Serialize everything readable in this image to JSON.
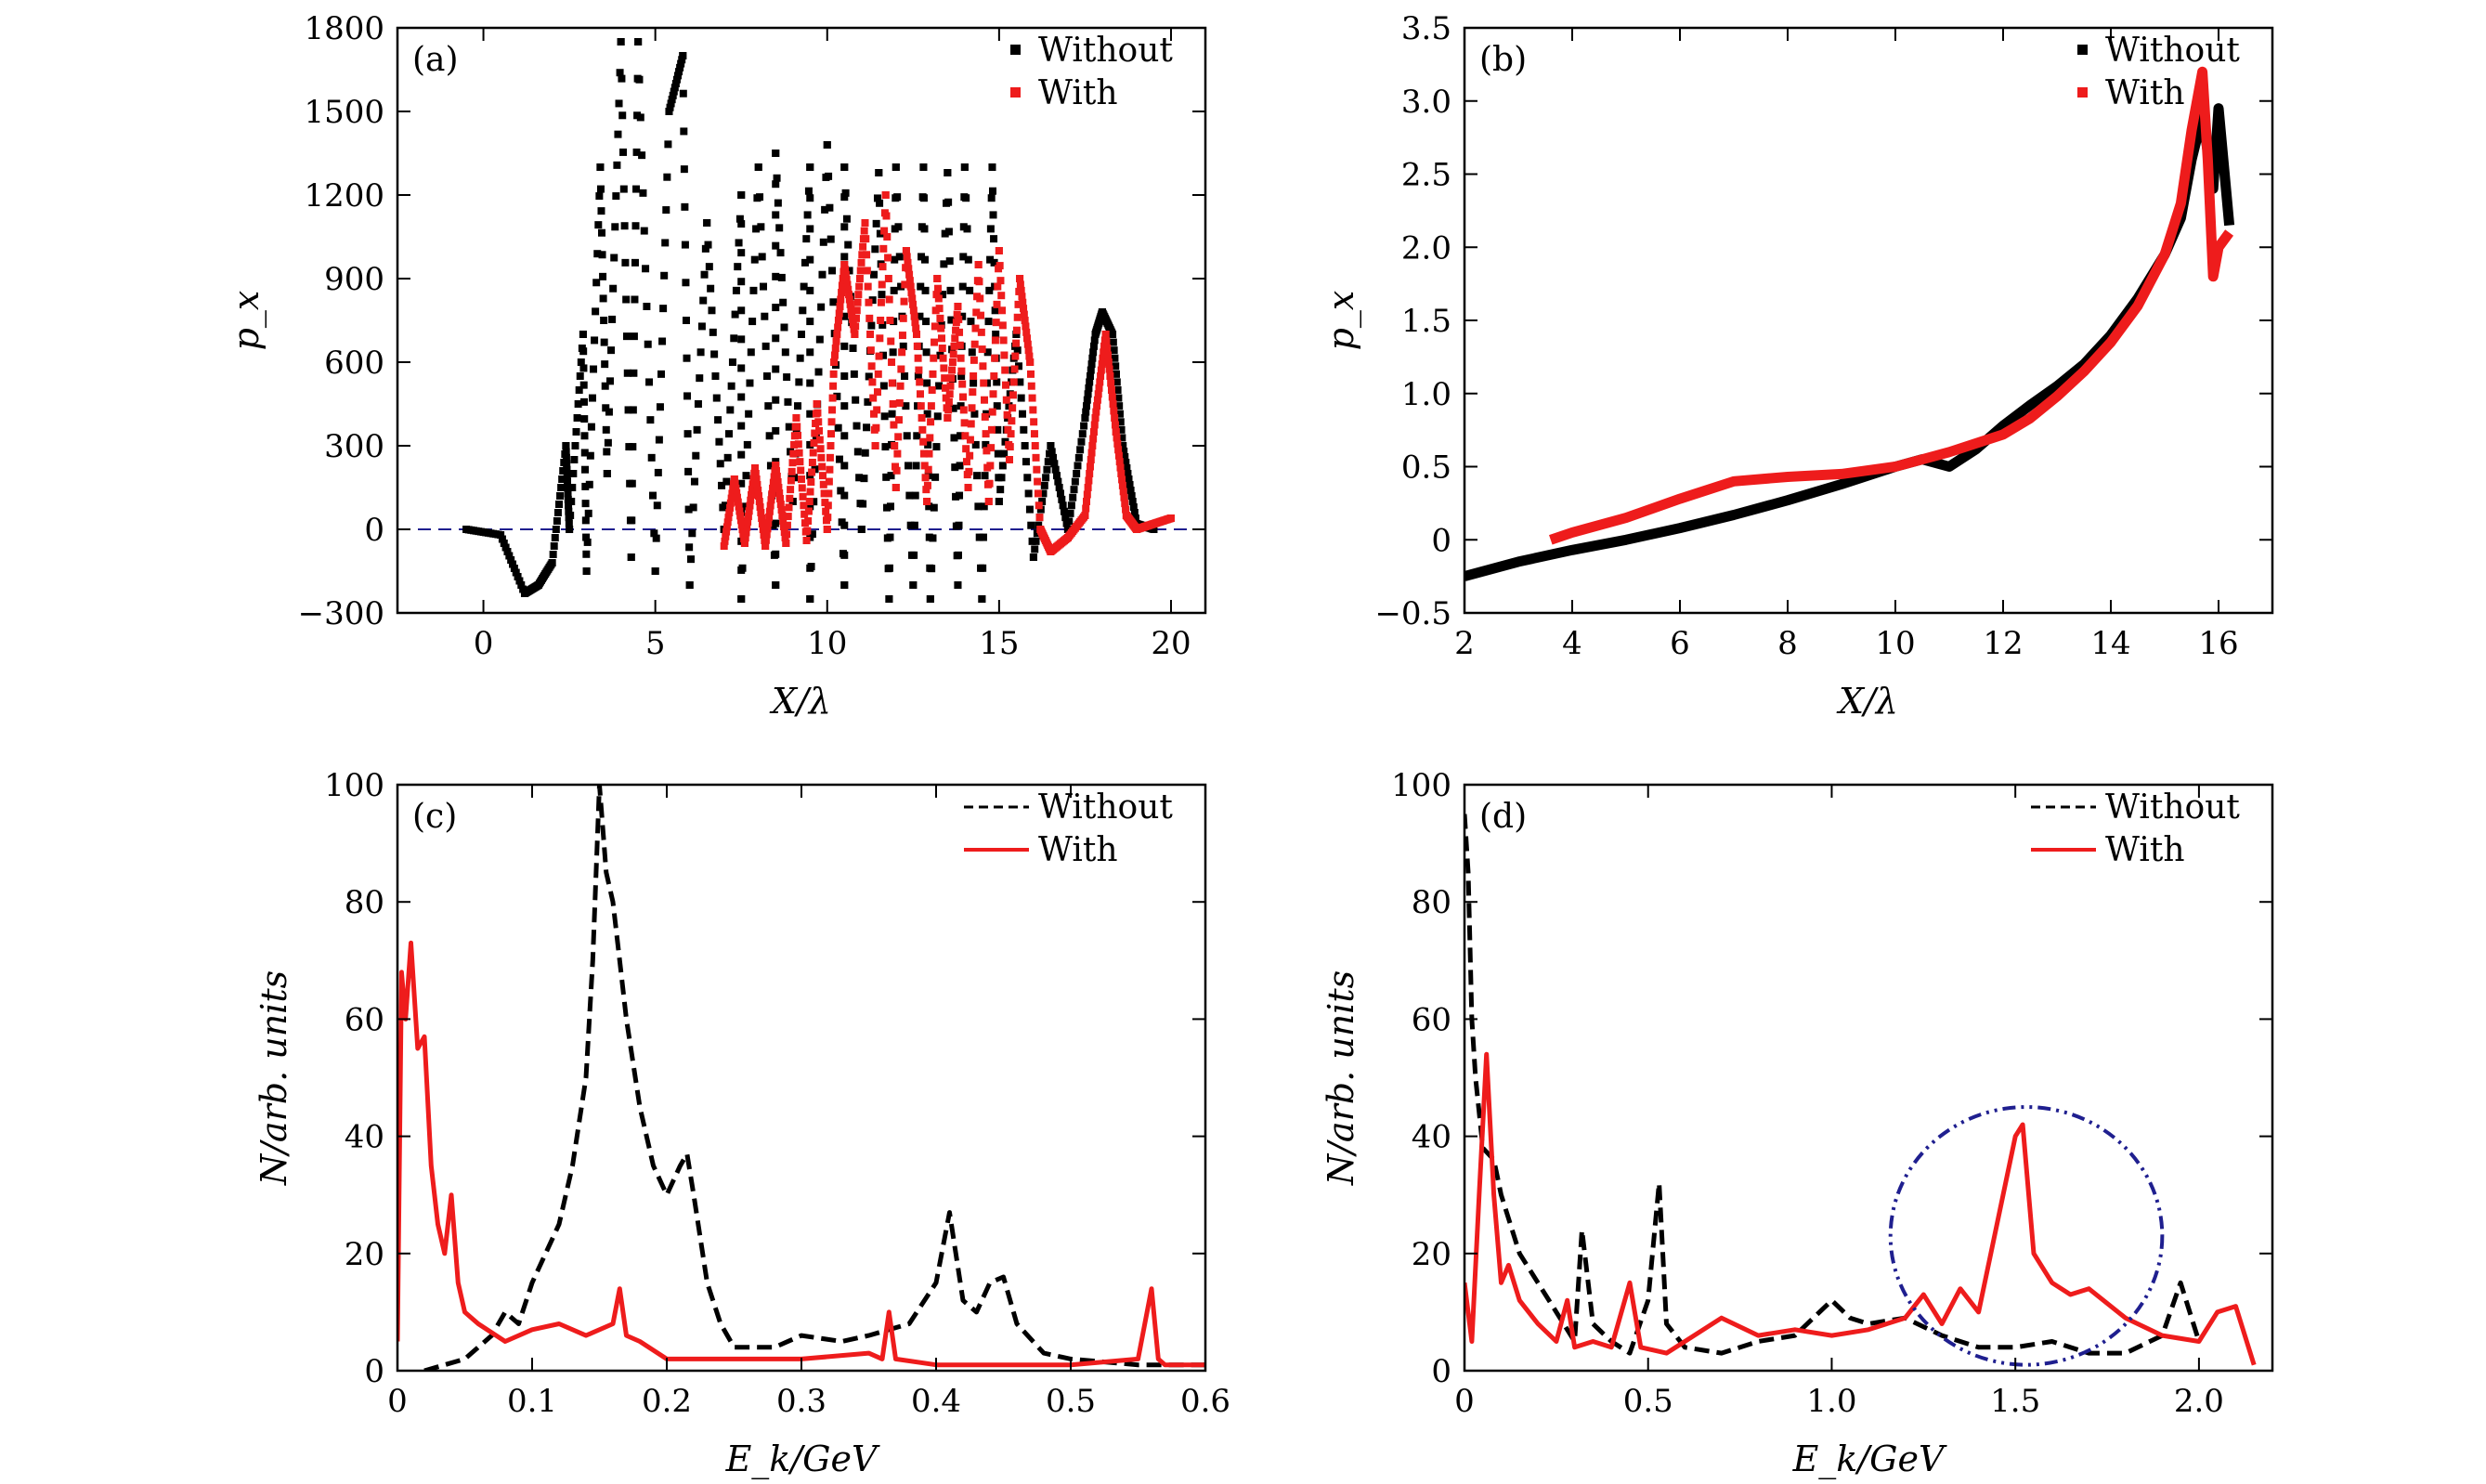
{
  "figure": {
    "colors": {
      "without": "#000000",
      "with": "#ee1c1c",
      "baseline": "#1f1f8f",
      "circle": "#1f1f8f"
    }
  },
  "chart_data": [
    {
      "panel": "(a)",
      "type": "scatter",
      "xlabel": "X/λ",
      "ylabel": "p_x",
      "xlim": [
        -2.5,
        21
      ],
      "ylim": [
        -300,
        1800
      ],
      "xticks": [
        "0",
        "5",
        "10",
        "15",
        "20"
      ],
      "yticks": [
        "−300",
        "0",
        "300",
        "600",
        "900",
        "1200",
        "1500",
        "1800"
      ],
      "xtick_values": [
        0,
        5,
        10,
        15,
        20
      ],
      "ytick_values": [
        -300,
        0,
        300,
        600,
        900,
        1200,
        1500,
        1800
      ],
      "legend": {
        "position": "top-right",
        "entries": [
          "Without",
          "With"
        ]
      },
      "baseline": {
        "y": 0,
        "style": "dashed"
      },
      "series": [
        {
          "name": "Without",
          "x": [
            -0.5,
            0.5,
            1.2,
            1.6,
            2.0,
            2.4,
            2.5,
            2.9,
            3.0,
            3.4,
            3.6,
            4.0,
            4.3,
            4.5,
            5.0,
            5.4,
            5.8,
            6.0,
            6.5,
            7.0,
            7.5,
            7.5,
            8.0,
            8.5,
            8.5,
            9.0,
            9.5,
            9.5,
            10.0,
            10.5,
            10.5,
            11.0,
            11.5,
            11.8,
            12.0,
            12.5,
            12.8,
            13.0,
            13.5,
            13.8,
            14.0,
            14.5,
            14.8,
            15.0,
            15.5,
            16.0,
            16.5,
            17.0,
            17.5,
            17.8,
            18.0,
            18.3,
            18.6,
            19.0,
            19.5
          ],
          "y": [
            0,
            -20,
            -230,
            -200,
            -120,
            300,
            0,
            700,
            -150,
            1300,
            200,
            1750,
            -100,
            1750,
            -150,
            1500,
            1700,
            -200,
            1100,
            0,
            1200,
            -250,
            1300,
            -200,
            1350,
            100,
            1300,
            -250,
            1380,
            -200,
            1300,
            0,
            1280,
            -250,
            1300,
            -200,
            1300,
            -250,
            1280,
            -200,
            1300,
            -250,
            1300,
            100,
            700,
            -100,
            300,
            0,
            400,
            700,
            780,
            700,
            300,
            20,
            0
          ]
        },
        {
          "name": "With",
          "x": [
            7.0,
            7.3,
            7.6,
            7.9,
            8.2,
            8.5,
            8.8,
            9.1,
            9.4,
            9.7,
            10.0,
            10.2,
            10.5,
            10.8,
            11.1,
            11.4,
            11.7,
            12.0,
            12.3,
            12.6,
            12.9,
            13.2,
            13.5,
            13.8,
            14.1,
            14.4,
            14.7,
            15.0,
            15.3,
            15.6,
            15.9,
            16.2,
            16.5,
            17.0,
            17.5,
            17.8,
            18.1,
            18.4,
            18.7,
            19.0,
            19.5,
            20.0
          ],
          "y": [
            -60,
            180,
            -50,
            220,
            -60,
            230,
            -50,
            400,
            -40,
            450,
            0,
            600,
            950,
            700,
            1100,
            300,
            1200,
            150,
            1000,
            700,
            100,
            900,
            400,
            800,
            150,
            950,
            100,
            1000,
            250,
            900,
            600,
            0,
            -80,
            -30,
            50,
            400,
            700,
            350,
            50,
            0,
            20,
            40
          ]
        }
      ]
    },
    {
      "panel": "(b)",
      "type": "line",
      "xlabel": "X/λ",
      "ylabel": "p_x",
      "xlim": [
        2,
        17
      ],
      "ylim": [
        -0.5,
        3.5
      ],
      "xticks": [
        "2",
        "4",
        "6",
        "8",
        "10",
        "12",
        "14",
        "16"
      ],
      "yticks": [
        "−0.5",
        "0",
        "0.5",
        "1.0",
        "1.5",
        "2.0",
        "2.5",
        "3.0",
        "3.5"
      ],
      "xtick_values": [
        2,
        4,
        6,
        8,
        10,
        12,
        14,
        16
      ],
      "ytick_values": [
        -0.5,
        0,
        0.5,
        1.0,
        1.5,
        2.0,
        2.5,
        3.0,
        3.5
      ],
      "legend": {
        "position": "top-right",
        "entries": [
          "Without",
          "With"
        ]
      },
      "series": [
        {
          "name": "Without",
          "x": [
            2.0,
            3.0,
            4.0,
            5.0,
            6.0,
            7.0,
            8.0,
            9.0,
            10.0,
            10.5,
            11.0,
            11.5,
            12.0,
            12.5,
            13.0,
            13.5,
            14.0,
            14.5,
            15.0,
            15.3,
            15.5,
            15.7,
            15.9,
            16.0,
            16.2
          ],
          "y": [
            -0.25,
            -0.15,
            -0.07,
            0.0,
            0.08,
            0.17,
            0.27,
            0.38,
            0.5,
            0.55,
            0.5,
            0.62,
            0.78,
            0.92,
            1.05,
            1.2,
            1.4,
            1.65,
            1.95,
            2.2,
            2.6,
            2.9,
            2.4,
            2.95,
            2.15
          ]
        },
        {
          "name": "With",
          "x": [
            3.6,
            4.0,
            5.0,
            6.0,
            7.0,
            8.0,
            9.0,
            10.0,
            11.0,
            12.0,
            12.5,
            13.0,
            13.5,
            14.0,
            14.5,
            15.0,
            15.3,
            15.5,
            15.7,
            15.8,
            15.9,
            16.0,
            16.2
          ],
          "y": [
            0.0,
            0.05,
            0.15,
            0.28,
            0.4,
            0.43,
            0.45,
            0.5,
            0.6,
            0.72,
            0.83,
            0.98,
            1.15,
            1.35,
            1.6,
            1.95,
            2.3,
            2.8,
            3.2,
            2.6,
            1.8,
            2.0,
            2.1
          ]
        }
      ]
    },
    {
      "panel": "(c)",
      "type": "line",
      "xlabel": "E_k/GeV",
      "ylabel": "N/arb. units",
      "xlim": [
        0,
        0.6
      ],
      "ylim": [
        0,
        100
      ],
      "xticks": [
        "0",
        "0.1",
        "0.2",
        "0.3",
        "0.4",
        "0.5",
        "0.6"
      ],
      "yticks": [
        "0",
        "20",
        "40",
        "60",
        "80",
        "100"
      ],
      "xtick_values": [
        0,
        0.1,
        0.2,
        0.3,
        0.4,
        0.5,
        0.6
      ],
      "ytick_values": [
        0,
        20,
        40,
        60,
        80,
        100
      ],
      "legend": {
        "position": "top-right",
        "entries": [
          "Without",
          "With"
        ]
      },
      "series": [
        {
          "name": "Without",
          "x": [
            0.02,
            0.05,
            0.07,
            0.08,
            0.09,
            0.1,
            0.11,
            0.12,
            0.13,
            0.14,
            0.145,
            0.15,
            0.155,
            0.16,
            0.165,
            0.17,
            0.18,
            0.19,
            0.2,
            0.21,
            0.215,
            0.22,
            0.23,
            0.24,
            0.25,
            0.28,
            0.3,
            0.33,
            0.35,
            0.38,
            0.4,
            0.41,
            0.42,
            0.43,
            0.44,
            0.45,
            0.46,
            0.48,
            0.5,
            0.55,
            0.6
          ],
          "y": [
            0,
            2,
            6,
            10,
            8,
            15,
            20,
            25,
            35,
            50,
            70,
            100,
            85,
            80,
            70,
            60,
            45,
            35,
            30,
            35,
            37,
            30,
            15,
            8,
            4,
            4,
            6,
            5,
            6,
            8,
            15,
            27,
            12,
            10,
            15,
            16,
            8,
            3,
            2,
            1,
            1
          ]
        },
        {
          "name": "With",
          "x": [
            0.0,
            0.003,
            0.006,
            0.01,
            0.015,
            0.02,
            0.025,
            0.03,
            0.035,
            0.04,
            0.045,
            0.05,
            0.06,
            0.08,
            0.1,
            0.12,
            0.14,
            0.16,
            0.165,
            0.17,
            0.18,
            0.2,
            0.25,
            0.3,
            0.35,
            0.36,
            0.365,
            0.37,
            0.4,
            0.45,
            0.5,
            0.55,
            0.56,
            0.565,
            0.57,
            0.6
          ],
          "y": [
            5,
            68,
            60,
            73,
            55,
            57,
            35,
            25,
            20,
            30,
            15,
            10,
            8,
            5,
            7,
            8,
            6,
            8,
            14,
            6,
            5,
            2,
            2,
            2,
            3,
            2,
            10,
            2,
            1,
            1,
            1,
            2,
            14,
            2,
            1,
            1
          ]
        }
      ]
    },
    {
      "panel": "(d)",
      "type": "line",
      "xlabel": "E_k/GeV",
      "ylabel": "N/arb. units",
      "xlim": [
        0,
        2.2
      ],
      "ylim": [
        0,
        100
      ],
      "xticks": [
        "0",
        "0.5",
        "1.0",
        "1.5",
        "2.0"
      ],
      "yticks": [
        "0",
        "20",
        "40",
        "60",
        "80",
        "100"
      ],
      "xtick_values": [
        0,
        0.5,
        1.0,
        1.5,
        2.0
      ],
      "ytick_values": [
        0,
        20,
        40,
        60,
        80,
        100
      ],
      "legend": {
        "position": "top-right",
        "entries": [
          "Without",
          "With"
        ]
      },
      "annotation": {
        "shape": "dash-dot circle",
        "center": [
          1.53,
          23
        ],
        "radius_x": 0.37,
        "radius_y": 22
      },
      "series": [
        {
          "name": "Without",
          "x": [
            0.0,
            0.01,
            0.02,
            0.03,
            0.05,
            0.08,
            0.1,
            0.15,
            0.2,
            0.25,
            0.3,
            0.32,
            0.35,
            0.4,
            0.45,
            0.5,
            0.53,
            0.55,
            0.6,
            0.7,
            0.8,
            0.9,
            1.0,
            1.05,
            1.1,
            1.2,
            1.3,
            1.4,
            1.5,
            1.6,
            1.7,
            1.8,
            1.9,
            1.95,
            2.0
          ],
          "y": [
            95,
            85,
            60,
            50,
            38,
            36,
            30,
            20,
            15,
            10,
            5,
            24,
            8,
            5,
            3,
            12,
            32,
            8,
            4,
            3,
            5,
            6,
            12,
            9,
            8,
            9,
            6,
            4,
            4,
            5,
            3,
            3,
            6,
            15,
            5
          ]
        },
        {
          "name": "With",
          "x": [
            0.0,
            0.02,
            0.04,
            0.06,
            0.08,
            0.1,
            0.12,
            0.15,
            0.2,
            0.25,
            0.28,
            0.3,
            0.35,
            0.4,
            0.45,
            0.48,
            0.55,
            0.6,
            0.7,
            0.8,
            0.9,
            1.0,
            1.1,
            1.2,
            1.25,
            1.3,
            1.35,
            1.4,
            1.45,
            1.5,
            1.52,
            1.55,
            1.6,
            1.65,
            1.7,
            1.8,
            1.9,
            2.0,
            2.05,
            2.1,
            2.15
          ],
          "y": [
            15,
            5,
            30,
            54,
            30,
            15,
            18,
            12,
            8,
            5,
            12,
            4,
            5,
            4,
            15,
            4,
            3,
            5,
            9,
            6,
            7,
            6,
            7,
            9,
            13,
            8,
            14,
            10,
            25,
            40,
            42,
            20,
            15,
            13,
            14,
            9,
            6,
            5,
            10,
            11,
            1
          ]
        }
      ]
    }
  ]
}
